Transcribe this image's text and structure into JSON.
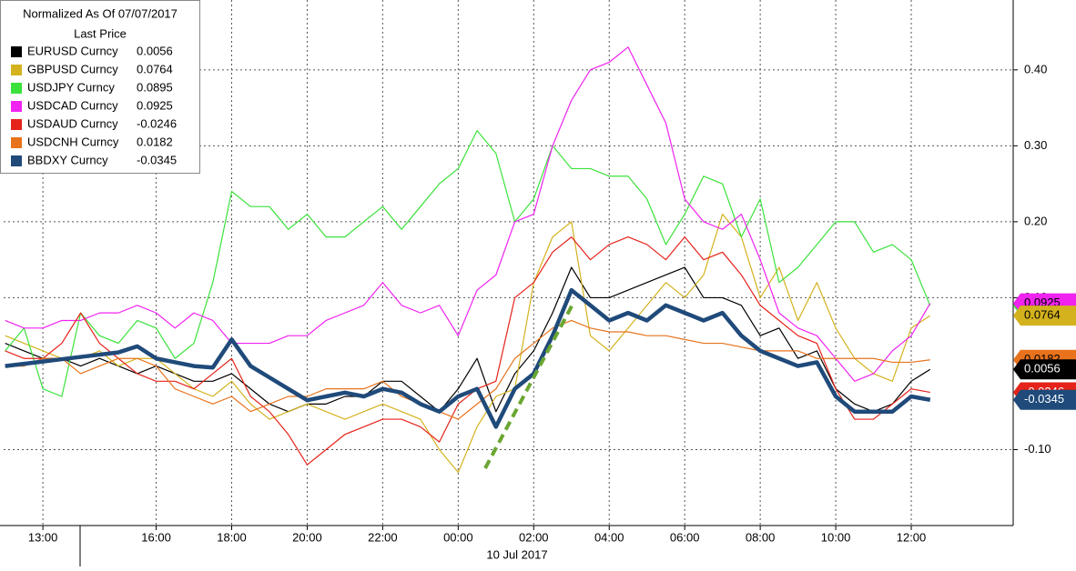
{
  "chart_data": {
    "type": "line",
    "title": "Normalized As Of 07/07/2017",
    "subtitle": "Last Price",
    "x_caption": "10 Jul 2017",
    "x": [
      12,
      12.5,
      13,
      13.5,
      14,
      14.5,
      15,
      15.5,
      16,
      16.5,
      17,
      17.5,
      18,
      18.5,
      19,
      19.5,
      20,
      20.5,
      21,
      21.5,
      22,
      22.5,
      23,
      23.5,
      24,
      24.5,
      25,
      25.5,
      26,
      26.5,
      27,
      27.5,
      28,
      28.5,
      29,
      29.5,
      30,
      30.5,
      31,
      31.5,
      32,
      32.5,
      33,
      33.5,
      34,
      34.5,
      35,
      35.5,
      36,
      36.5
    ],
    "xlim": [
      11.96,
      38.7
    ],
    "xticks": [
      {
        "value": 13,
        "label": "13:00"
      },
      {
        "value": 16,
        "label": "16:00"
      },
      {
        "value": 18,
        "label": "18:00"
      },
      {
        "value": 20,
        "label": "20:00"
      },
      {
        "value": 22,
        "label": "22:00"
      },
      {
        "value": 24,
        "label": "00:00"
      },
      {
        "value": 26,
        "label": "02:00"
      },
      {
        "value": 28,
        "label": "04:00"
      },
      {
        "value": 30,
        "label": "06:00"
      },
      {
        "value": 32,
        "label": "08:00"
      },
      {
        "value": 34,
        "label": "10:00"
      },
      {
        "value": 36,
        "label": "12:00"
      }
    ],
    "ylim": [
      -0.2,
      0.492
    ],
    "yticks": [
      {
        "value": -0.1,
        "label": "-0.10"
      },
      {
        "value": 0.1,
        "label": "0.10"
      },
      {
        "value": 0.2,
        "label": "0.20"
      },
      {
        "value": 0.3,
        "label": "0.30"
      },
      {
        "value": 0.4,
        "label": "0.40"
      }
    ],
    "grid": true,
    "series": [
      {
        "name": "EURUSD Curncy",
        "last": 0.0056,
        "color": "#000000",
        "values": [
          0.04,
          0.03,
          0.02,
          0.02,
          0.01,
          0.02,
          0.01,
          0.0,
          0.01,
          0.0,
          -0.01,
          -0.01,
          0.0,
          -0.02,
          -0.04,
          -0.05,
          -0.04,
          -0.04,
          -0.03,
          -0.03,
          -0.01,
          -0.01,
          -0.03,
          -0.05,
          -0.02,
          0.02,
          -0.05,
          0.0,
          0.03,
          0.08,
          0.14,
          0.1,
          0.1,
          0.11,
          0.12,
          0.13,
          0.14,
          0.1,
          0.1,
          0.09,
          0.05,
          0.06,
          0.02,
          0.03,
          -0.02,
          -0.04,
          -0.05,
          -0.04,
          -0.01,
          0.0056
        ]
      },
      {
        "name": "GBPUSD Curncy",
        "last": 0.0764,
        "color": "#d4b21e",
        "values": [
          0.05,
          0.04,
          0.03,
          0.02,
          0.02,
          0.03,
          0.01,
          0.02,
          0.02,
          0.0,
          -0.02,
          -0.03,
          -0.01,
          -0.04,
          -0.06,
          -0.05,
          -0.04,
          -0.05,
          -0.06,
          -0.05,
          -0.04,
          -0.05,
          -0.06,
          -0.1,
          -0.13,
          -0.07,
          -0.03,
          -0.02,
          0.12,
          0.18,
          0.2,
          0.05,
          0.03,
          0.06,
          0.09,
          0.12,
          0.1,
          0.13,
          0.21,
          0.18,
          0.1,
          0.14,
          0.07,
          0.12,
          0.06,
          0.02,
          0.0,
          -0.01,
          0.06,
          0.0764
        ]
      },
      {
        "name": "USDJPY Curncy",
        "last": 0.0895,
        "color": "#3be23b",
        "values": [
          0.03,
          0.06,
          -0.02,
          -0.03,
          0.08,
          0.05,
          0.04,
          0.07,
          0.06,
          0.02,
          0.04,
          0.12,
          0.24,
          0.22,
          0.22,
          0.19,
          0.21,
          0.18,
          0.18,
          0.2,
          0.22,
          0.19,
          0.22,
          0.25,
          0.27,
          0.32,
          0.29,
          0.2,
          0.23,
          0.3,
          0.27,
          0.27,
          0.26,
          0.26,
          0.23,
          0.17,
          0.21,
          0.26,
          0.25,
          0.18,
          0.23,
          0.12,
          0.14,
          0.17,
          0.2,
          0.2,
          0.16,
          0.17,
          0.15,
          0.0895
        ]
      },
      {
        "name": "USDCAD Curncy",
        "last": 0.0925,
        "color": "#f023f0",
        "values": [
          0.07,
          0.06,
          0.06,
          0.07,
          0.07,
          0.08,
          0.08,
          0.09,
          0.08,
          0.06,
          0.08,
          0.07,
          0.04,
          0.04,
          0.04,
          0.05,
          0.05,
          0.07,
          0.08,
          0.09,
          0.12,
          0.09,
          0.08,
          0.09,
          0.05,
          0.11,
          0.13,
          0.2,
          0.21,
          0.3,
          0.36,
          0.4,
          0.41,
          0.43,
          0.38,
          0.33,
          0.23,
          0.2,
          0.19,
          0.21,
          0.15,
          0.08,
          0.06,
          0.05,
          0.02,
          -0.01,
          0.0,
          0.03,
          0.05,
          0.0925
        ]
      },
      {
        "name": "USDAUD Curncy",
        "last": -0.0246,
        "color": "#e5231b",
        "values": [
          0.03,
          0.02,
          0.02,
          0.04,
          0.08,
          0.04,
          0.02,
          0.0,
          -0.01,
          -0.01,
          -0.02,
          0.0,
          0.02,
          -0.03,
          -0.05,
          -0.08,
          -0.12,
          -0.1,
          -0.08,
          -0.07,
          -0.06,
          -0.06,
          -0.07,
          -0.09,
          -0.04,
          -0.02,
          -0.01,
          0.1,
          0.12,
          0.16,
          0.18,
          0.15,
          0.17,
          0.18,
          0.17,
          0.15,
          0.18,
          0.15,
          0.16,
          0.13,
          0.09,
          0.07,
          0.05,
          0.04,
          -0.02,
          -0.06,
          -0.06,
          -0.04,
          -0.02,
          -0.0246
        ]
      },
      {
        "name": "USDCNH Curncy",
        "last": 0.0182,
        "color": "#e8731c",
        "values": [
          0.01,
          0.01,
          0.02,
          0.02,
          0.0,
          0.01,
          0.02,
          0.02,
          0.01,
          -0.02,
          -0.03,
          -0.04,
          -0.03,
          -0.05,
          -0.04,
          -0.03,
          -0.03,
          -0.02,
          -0.02,
          -0.02,
          -0.01,
          -0.03,
          -0.04,
          -0.05,
          -0.06,
          -0.04,
          -0.02,
          0.02,
          0.04,
          0.06,
          0.07,
          0.06,
          0.055,
          0.055,
          0.05,
          0.05,
          0.045,
          0.04,
          0.04,
          0.035,
          0.03,
          0.03,
          0.03,
          0.02,
          0.02,
          0.02,
          0.02,
          0.015,
          0.015,
          0.0182
        ]
      },
      {
        "name": "BBDXY Curncy",
        "last": -0.0345,
        "color": "#1f4a7a",
        "values": [
          0.01,
          0.013,
          0.016,
          0.019,
          0.022,
          0.025,
          0.028,
          0.036,
          0.02,
          0.015,
          0.01,
          0.008,
          0.045,
          0.01,
          -0.005,
          -0.02,
          -0.035,
          -0.03,
          -0.025,
          -0.03,
          -0.02,
          -0.025,
          -0.04,
          -0.05,
          -0.03,
          -0.02,
          -0.07,
          -0.02,
          0.0,
          0.05,
          0.11,
          0.09,
          0.07,
          0.08,
          0.07,
          0.09,
          0.08,
          0.07,
          0.08,
          0.05,
          0.03,
          0.02,
          0.01,
          0.015,
          -0.03,
          -0.05,
          -0.05,
          -0.05,
          -0.03,
          -0.0345
        ]
      }
    ]
  }
}
